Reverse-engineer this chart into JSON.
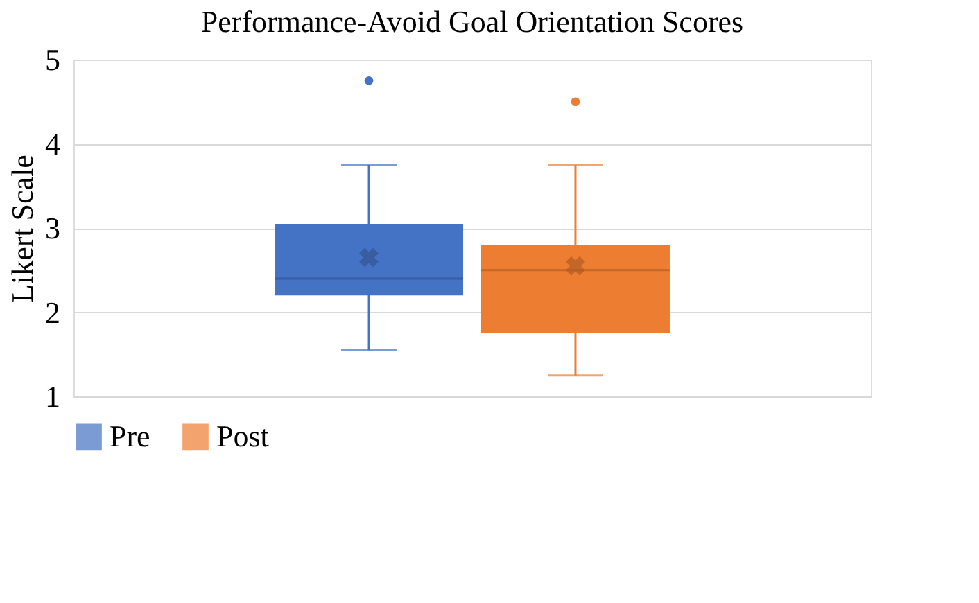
{
  "chart_data": {
    "type": "box",
    "title": "Performance-Avoid Goal Orientation Scores",
    "ylabel": "Likert Scale",
    "categories": [
      null
    ],
    "series": [
      {
        "name": "Pre",
        "color": "#4472c4",
        "boxes": [
          {
            "low": 1.55,
            "q1": 2.2,
            "median": 2.4,
            "q3": 3.05,
            "high": 3.75,
            "mean": 2.65,
            "outliers": [
              4.75
            ]
          }
        ]
      },
      {
        "name": "Post",
        "color": "#ed7d31",
        "boxes": [
          {
            "low": 1.25,
            "q1": 1.75,
            "median": 2.5,
            "q3": 2.8,
            "high": 3.75,
            "mean": 2.55,
            "outliers": [
              4.5
            ]
          }
        ]
      }
    ],
    "ylim": [
      1,
      5
    ],
    "yticks": [
      1,
      2,
      3,
      4,
      5
    ],
    "grid": "y",
    "legend": "bottom",
    "tick_labels": "y",
    "marker": "circle"
  }
}
